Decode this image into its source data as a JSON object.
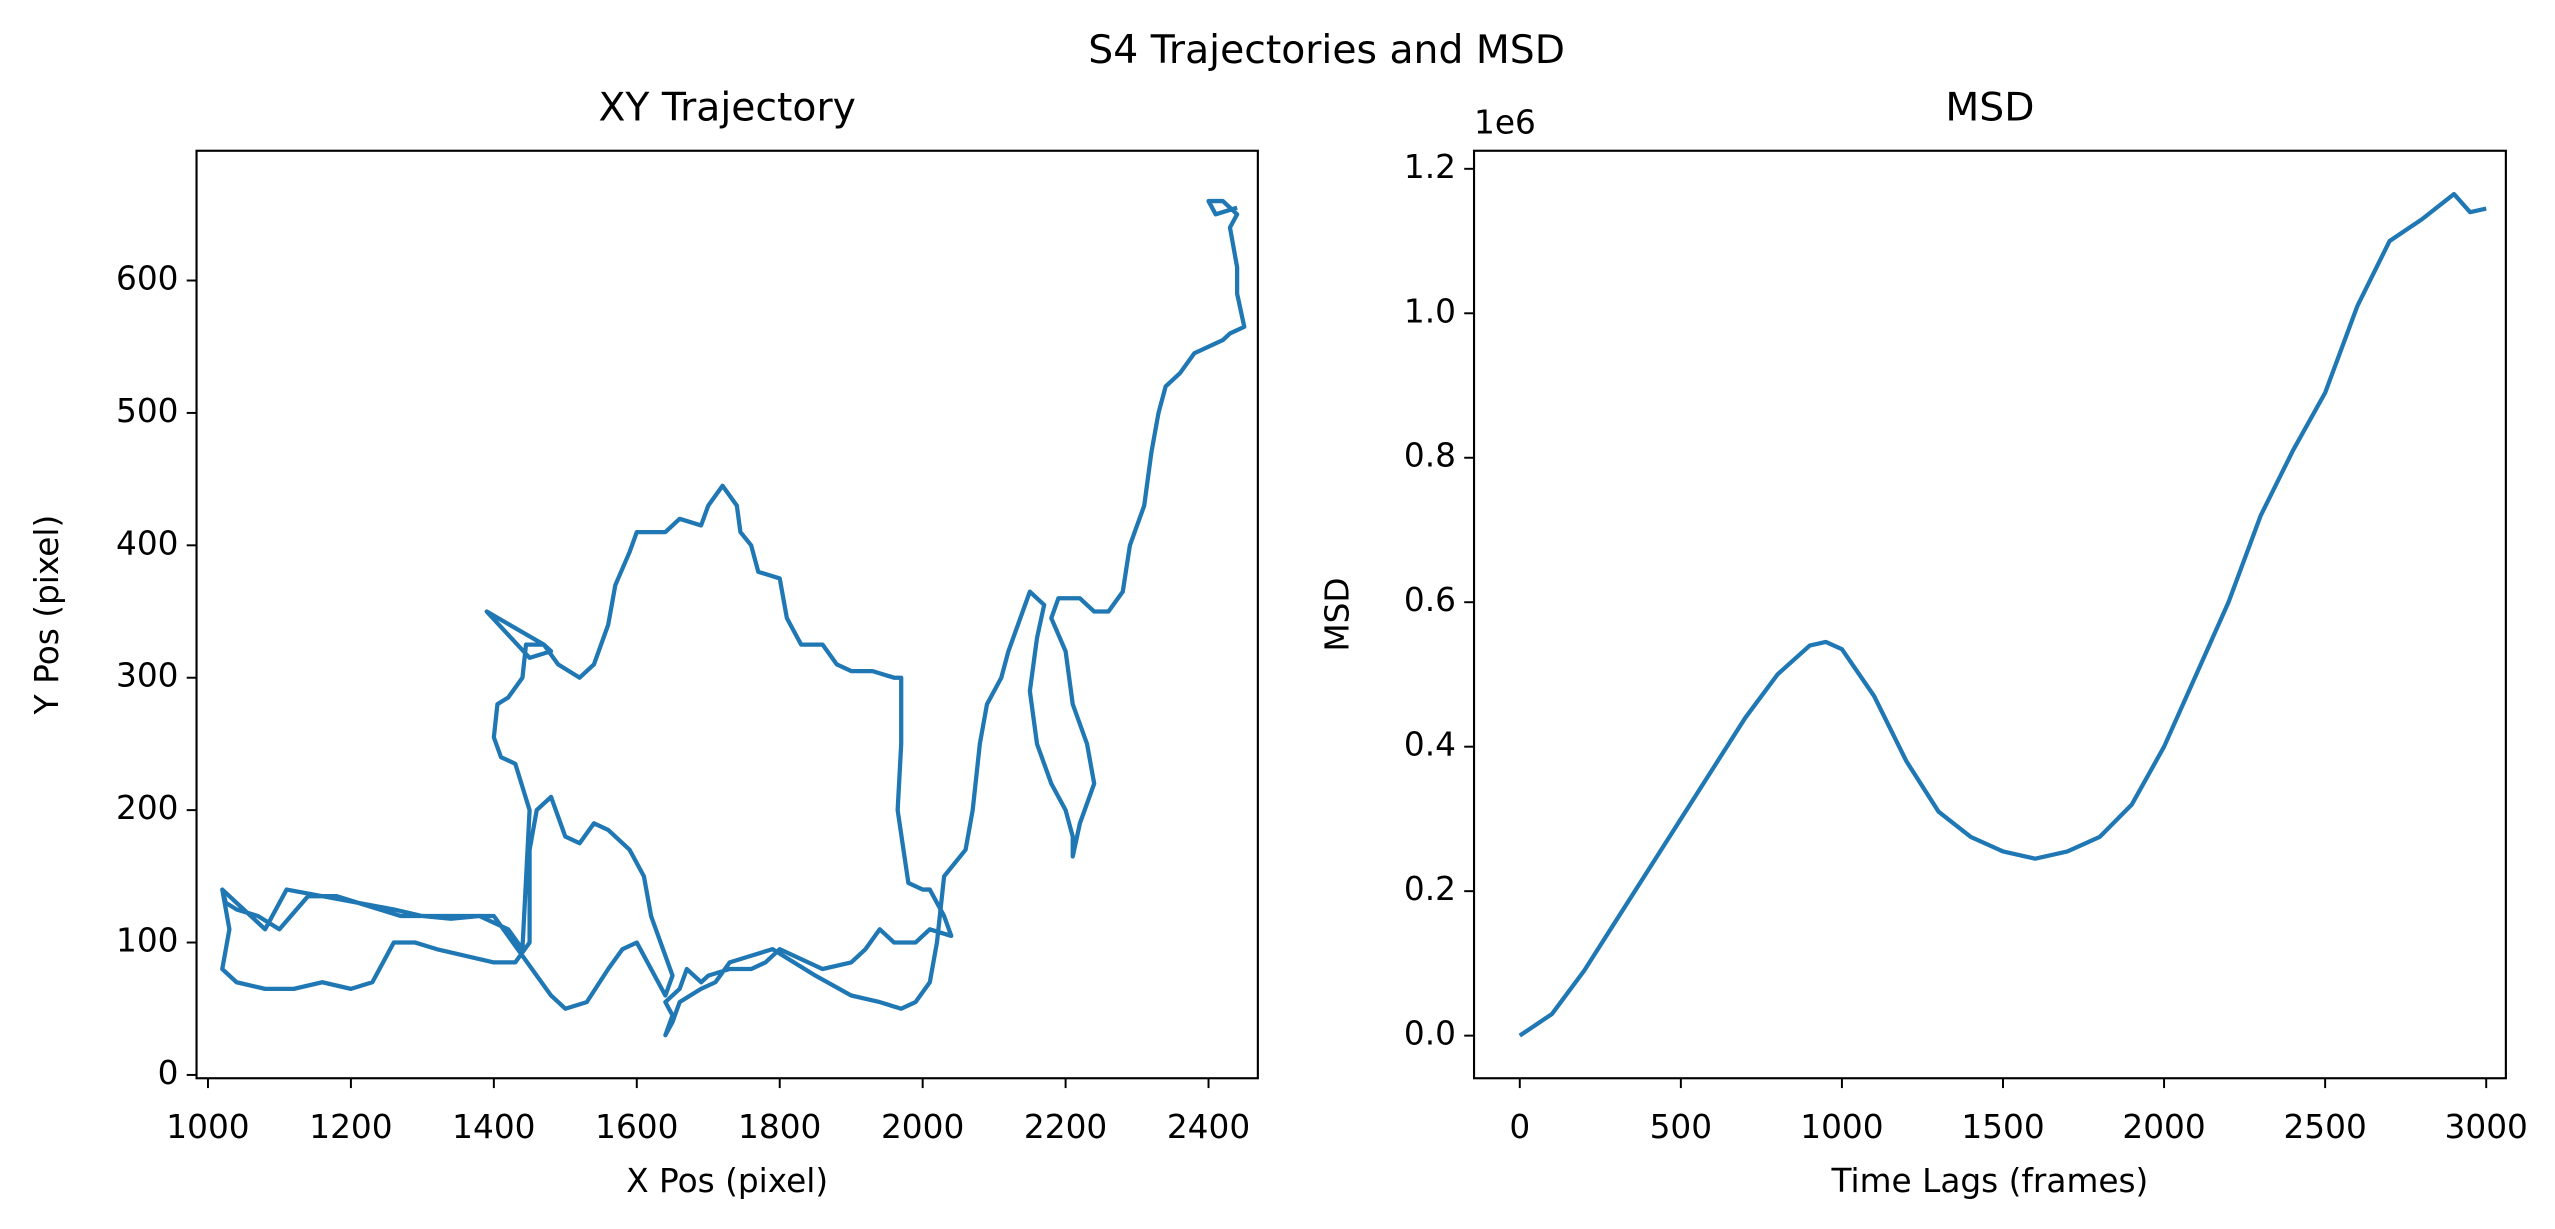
{
  "suptitle": "S4 Trajectories and MSD",
  "chart_data": [
    {
      "type": "line",
      "title": "XY Trajectory",
      "x_label": "X Pos (pixel)",
      "y_label": "Y Pos (pixel)",
      "xlim": [
        984,
        2469
      ],
      "ylim": [
        -2.5,
        698
      ],
      "xticks": [
        1000,
        1200,
        1400,
        1600,
        1800,
        2000,
        2200,
        2400
      ],
      "yticks": [
        0,
        100,
        200,
        300,
        400,
        500,
        600
      ],
      "series": [
        {
          "color": "#1f77b4",
          "x": [
            1020,
            1030,
            1020,
            1040,
            1080,
            1120,
            1160,
            1200,
            1230,
            1260,
            1290,
            1320,
            1360,
            1400,
            1430,
            1450,
            1450,
            1460,
            1480,
            1500,
            1520,
            1540,
            1560,
            1590,
            1610,
            1620,
            1640,
            1650,
            1640,
            1620,
            1600,
            1580,
            1560,
            1530,
            1500,
            1480,
            1440,
            1420,
            1400,
            1340,
            1300,
            1260,
            1210,
            1160,
            1110,
            1080,
            1050,
            1020,
            1025,
            1040,
            1070,
            1100,
            1140,
            1180,
            1210,
            1240,
            1270,
            1300,
            1340,
            1380,
            1420,
            1440,
            1450,
            1430,
            1410,
            1400,
            1405,
            1420,
            1440,
            1445,
            1470,
            1480,
            1450,
            1390,
            1470,
            1490,
            1520,
            1540,
            1560,
            1570,
            1590,
            1600,
            1640,
            1660,
            1690,
            1700,
            1720,
            1740,
            1745,
            1760,
            1770,
            1800,
            1810,
            1830,
            1860,
            1880,
            1900,
            1930,
            1960,
            1970,
            1970,
            1965,
            1980,
            2000,
            2010,
            2030,
            2040,
            2010,
            1990,
            1960,
            1940,
            1920,
            1900,
            1860,
            1820,
            1800,
            1780,
            1760,
            1730,
            1700,
            1690,
            1670,
            1660,
            1640,
            1650,
            1640,
            1650,
            1660,
            1690,
            1710,
            1730,
            1760,
            1790,
            1820,
            1850,
            1900,
            1940,
            1970,
            1990,
            2010,
            2020,
            2030,
            2060,
            2070,
            2080,
            2090,
            2110,
            2120,
            2140,
            2150,
            2170,
            2160,
            2150,
            2160,
            2180,
            2200,
            2210,
            2210,
            2220,
            2240,
            2230,
            2210,
            2200,
            2180,
            2190,
            2220,
            2240,
            2260,
            2280,
            2290,
            2310,
            2320,
            2330,
            2340,
            2350,
            2360,
            2380,
            2400,
            2420,
            2430,
            2450,
            2440,
            2440,
            2430,
            2440,
            2420,
            2400,
            2410,
            2440
          ],
          "values": [
            140,
            110,
            80,
            70,
            65,
            65,
            70,
            65,
            70,
            100,
            100,
            95,
            90,
            85,
            85,
            100,
            170,
            200,
            210,
            180,
            175,
            190,
            185,
            170,
            150,
            120,
            90,
            75,
            60,
            80,
            100,
            95,
            80,
            55,
            50,
            60,
            90,
            105,
            120,
            120,
            120,
            125,
            130,
            135,
            140,
            110,
            125,
            140,
            130,
            125,
            120,
            110,
            135,
            135,
            130,
            125,
            120,
            120,
            118,
            120,
            110,
            95,
            200,
            235,
            240,
            255,
            280,
            285,
            300,
            325,
            325,
            320,
            315,
            350,
            325,
            310,
            300,
            310,
            340,
            370,
            395,
            410,
            410,
            420,
            415,
            430,
            445,
            430,
            410,
            400,
            380,
            375,
            345,
            325,
            325,
            310,
            305,
            305,
            300,
            300,
            250,
            200,
            145,
            140,
            140,
            120,
            105,
            110,
            100,
            100,
            110,
            95,
            85,
            80,
            90,
            95,
            85,
            80,
            80,
            75,
            70,
            80,
            65,
            55,
            45,
            30,
            40,
            55,
            65,
            70,
            85,
            90,
            95,
            85,
            75,
            60,
            55,
            50,
            55,
            70,
            100,
            150,
            170,
            200,
            250,
            280,
            300,
            320,
            350,
            365,
            355,
            330,
            290,
            250,
            220,
            200,
            180,
            165,
            190,
            220,
            250,
            280,
            320,
            345,
            360,
            360,
            350,
            350,
            365,
            400,
            430,
            470,
            500,
            520,
            525,
            530,
            545,
            550,
            555,
            560,
            565,
            590,
            610,
            640,
            650,
            660,
            660,
            650,
            655
          ]
        }
      ]
    },
    {
      "type": "line",
      "title": "MSD",
      "x_label": "Time Lags (frames)",
      "y_label": "MSD",
      "y_offset_label": "1e6",
      "xlim": [
        -142,
        3061
      ],
      "ylim": [
        -0.059,
        1.225
      ],
      "xticks": [
        0,
        500,
        1000,
        1500,
        2000,
        2500,
        3000
      ],
      "yticks": [
        {
          "value": 0,
          "label": "0.0"
        },
        0.2,
        0.4,
        0.6,
        0.8,
        {
          "value": 1,
          "label": "1.0"
        },
        1.2
      ],
      "series": [
        {
          "color": "#1f77b4",
          "x": [
            0,
            100,
            200,
            300,
            400,
            500,
            600,
            700,
            800,
            900,
            950,
            1000,
            1100,
            1200,
            1300,
            1400,
            1500,
            1600,
            1700,
            1800,
            1900,
            2000,
            2100,
            2200,
            2300,
            2400,
            2500,
            2600,
            2700,
            2800,
            2900,
            2950,
            3000
          ],
          "values": [
            0,
            0.03,
            0.09,
            0.16,
            0.23,
            0.3,
            0.37,
            0.44,
            0.5,
            0.54,
            0.545,
            0.535,
            0.47,
            0.38,
            0.31,
            0.275,
            0.255,
            0.245,
            0.255,
            0.275,
            0.32,
            0.4,
            0.5,
            0.6,
            0.72,
            0.81,
            0.89,
            1.01,
            1.1,
            1.13,
            1.165,
            1.14,
            1.145
          ]
        }
      ]
    }
  ]
}
